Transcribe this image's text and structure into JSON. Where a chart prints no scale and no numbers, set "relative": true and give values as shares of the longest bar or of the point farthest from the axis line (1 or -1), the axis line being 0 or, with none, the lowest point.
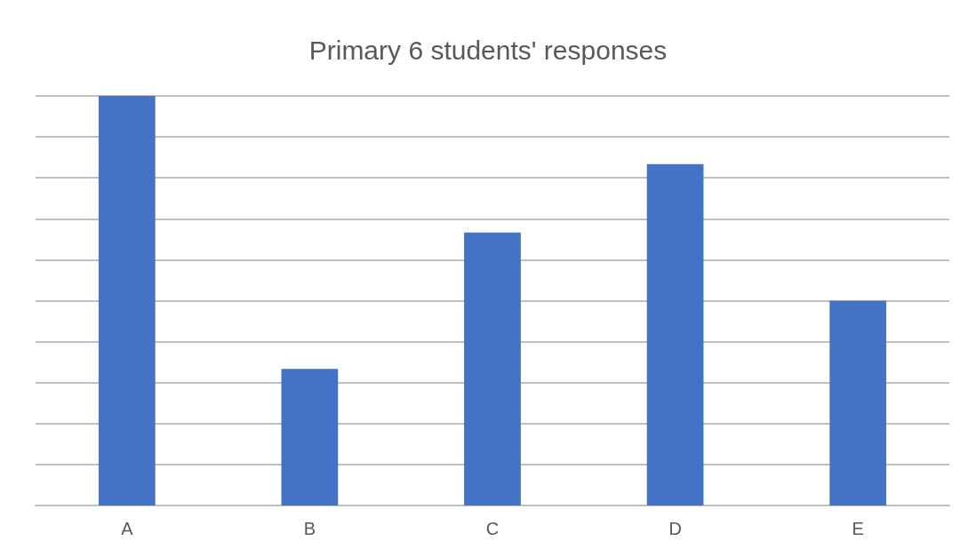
{
  "chart_data": {
    "type": "bar",
    "title": "Primary 6 students' responses",
    "categories": [
      "A",
      "B",
      "C",
      "D",
      "E"
    ],
    "values": [
      1,
      0.3333,
      0.6667,
      0.8333,
      0.5
    ],
    "color": "#4472c4",
    "relative": true,
    "grid": "y"
  }
}
